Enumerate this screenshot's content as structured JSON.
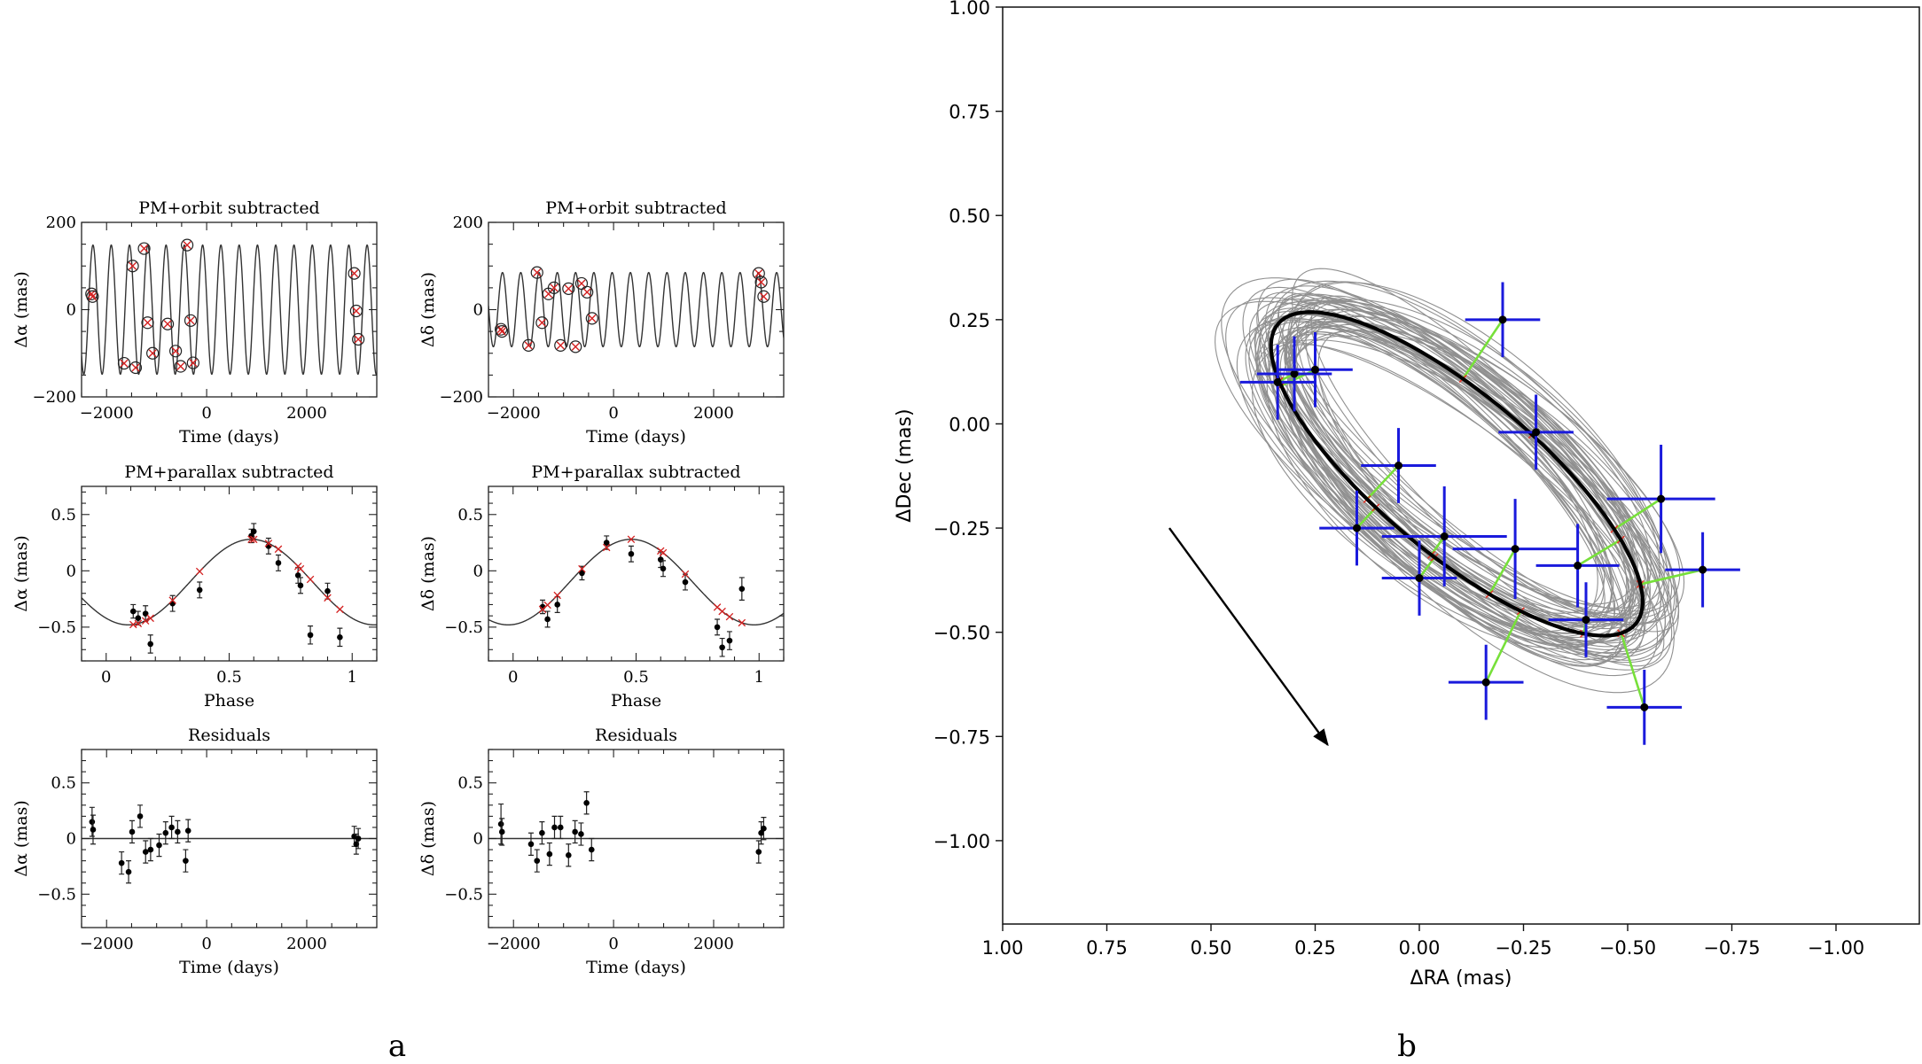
{
  "figure_labels": {
    "a": "a",
    "b": "b"
  },
  "chart_data": [
    {
      "id": "a1",
      "type": "line",
      "title": "PM+orbit subtracted",
      "xlabel": "Time (days)",
      "ylabel": "Δα (mas)",
      "xlim": [
        -2500,
        3400
      ],
      "ylim": [
        -200,
        200
      ],
      "xticks": [
        -2000,
        0,
        2000
      ],
      "yticks": [
        -200,
        0,
        200
      ],
      "model": {
        "kind": "sine",
        "amplitude": 148,
        "period": 365.25,
        "phase_day": -2272
      },
      "points": [
        [
          -2300,
          36
        ],
        [
          -2280,
          30
        ],
        [
          -1480,
          100
        ],
        [
          -1250,
          140
        ],
        [
          -1180,
          -30
        ],
        [
          -1080,
          -100
        ],
        [
          -1650,
          -123
        ],
        [
          -1420,
          -133
        ],
        [
          -780,
          -33
        ],
        [
          -620,
          -95
        ],
        [
          -520,
          -130
        ],
        [
          -390,
          148
        ],
        [
          -320,
          -25
        ],
        [
          -270,
          -122
        ],
        [
          2950,
          83
        ],
        [
          2990,
          -3
        ],
        [
          3030,
          -68
        ]
      ]
    },
    {
      "id": "a2",
      "type": "line",
      "title": "PM+orbit subtracted",
      "xlabel": "Time (days)",
      "ylabel": "Δδ (mas)",
      "xlim": [
        -2500,
        3400
      ],
      "ylim": [
        -200,
        200
      ],
      "xticks": [
        -2000,
        0,
        2000
      ],
      "yticks": [
        -200,
        0,
        200
      ],
      "model": {
        "kind": "sine",
        "amplitude": 85,
        "period": 365.25,
        "phase_day": -2220
      },
      "points": [
        [
          -2250,
          -45
        ],
        [
          -2230,
          -50
        ],
        [
          -1700,
          -82
        ],
        [
          -1530,
          85
        ],
        [
          -1430,
          -30
        ],
        [
          -1300,
          36
        ],
        [
          -1190,
          50
        ],
        [
          -1060,
          -82
        ],
        [
          -900,
          48
        ],
        [
          -760,
          -85
        ],
        [
          -640,
          60
        ],
        [
          -530,
          40
        ],
        [
          -430,
          -20
        ],
        [
          2900,
          83
        ],
        [
          2950,
          63
        ],
        [
          3000,
          30
        ]
      ]
    },
    {
      "id": "a3",
      "type": "line",
      "title": "PM+parallax subtracted",
      "xlabel": "Phase",
      "ylabel": "Δα (mas)",
      "xlim": [
        -0.1,
        1.1
      ],
      "ylim": [
        -0.8,
        0.75
      ],
      "xticks": [
        0,
        0.5,
        1
      ],
      "xtick_labels": [
        "0",
        "0.5",
        "1"
      ],
      "yticks": [
        -0.5,
        0,
        0.5
      ],
      "ytick_labels": [
        "−0.5",
        "0",
        "0.5"
      ],
      "model": {
        "kind": "cosine",
        "mean": -0.1,
        "amplitude": 0.38,
        "peak_phase": 0.59
      },
      "points": [
        [
          0.11,
          -0.36,
          0.06
        ],
        [
          0.13,
          -0.42,
          0.06
        ],
        [
          0.16,
          -0.38,
          0.07
        ],
        [
          0.18,
          -0.65,
          0.08
        ],
        [
          0.27,
          -0.29,
          0.07
        ],
        [
          0.38,
          -0.17,
          0.07
        ],
        [
          0.59,
          0.31,
          0.06
        ],
        [
          0.6,
          0.35,
          0.07
        ],
        [
          0.66,
          0.22,
          0.07
        ],
        [
          0.7,
          0.07,
          0.07
        ],
        [
          0.78,
          -0.04,
          0.07
        ],
        [
          0.79,
          -0.13,
          0.07
        ],
        [
          0.83,
          -0.57,
          0.08
        ],
        [
          0.9,
          -0.18,
          0.07
        ],
        [
          0.95,
          -0.59,
          0.08
        ]
      ]
    },
    {
      "id": "a4",
      "type": "line",
      "title": "PM+parallax subtracted",
      "xlabel": "Phase",
      "ylabel": "Δδ (mas)",
      "xlim": [
        -0.1,
        1.1
      ],
      "ylim": [
        -0.8,
        0.75
      ],
      "xticks": [
        0,
        0.5,
        1
      ],
      "xtick_labels": [
        "0",
        "0.5",
        "1"
      ],
      "yticks": [
        -0.5,
        0,
        0.5
      ],
      "ytick_labels": [
        "−0.5",
        "0",
        "0.5"
      ],
      "model": {
        "kind": "cosine",
        "mean": -0.1,
        "amplitude": 0.38,
        "peak_phase": 0.48
      },
      "points": [
        [
          0.12,
          -0.32,
          0.06
        ],
        [
          0.14,
          -0.43,
          0.07
        ],
        [
          0.18,
          -0.3,
          0.07
        ],
        [
          0.28,
          -0.02,
          0.06
        ],
        [
          0.38,
          0.25,
          0.06
        ],
        [
          0.48,
          0.15,
          0.07
        ],
        [
          0.6,
          0.1,
          0.07
        ],
        [
          0.61,
          0.02,
          0.07
        ],
        [
          0.7,
          -0.1,
          0.07
        ],
        [
          0.83,
          -0.5,
          0.07
        ],
        [
          0.85,
          -0.68,
          0.08
        ],
        [
          0.88,
          -0.62,
          0.08
        ],
        [
          0.93,
          -0.16,
          0.1
        ]
      ]
    },
    {
      "id": "a5",
      "type": "scatter",
      "title": "Residuals",
      "xlabel": "Time (days)",
      "ylabel": "Δα (mas)",
      "xlim": [
        -2500,
        3400
      ],
      "ylim": [
        -0.8,
        0.8
      ],
      "xticks": [
        -2000,
        0,
        2000
      ],
      "yticks": [
        -0.5,
        0,
        0.5
      ],
      "ytick_labels": [
        "−0.5",
        "0",
        "0.5"
      ],
      "points": [
        [
          -2290,
          0.15,
          0.13
        ],
        [
          -2270,
          0.08,
          0.13
        ],
        [
          -1700,
          -0.22,
          0.1
        ],
        [
          -1560,
          -0.3,
          0.1
        ],
        [
          -1490,
          0.06,
          0.1
        ],
        [
          -1330,
          0.2,
          0.1
        ],
        [
          -1220,
          -0.12,
          0.1
        ],
        [
          -1120,
          -0.1,
          0.1
        ],
        [
          -950,
          -0.06,
          0.1
        ],
        [
          -820,
          0.05,
          0.1
        ],
        [
          -700,
          0.1,
          0.1
        ],
        [
          -580,
          0.06,
          0.1
        ],
        [
          -420,
          -0.2,
          0.1
        ],
        [
          -370,
          0.07,
          0.1
        ],
        [
          2950,
          0.02,
          0.09
        ],
        [
          2990,
          -0.05,
          0.09
        ],
        [
          3030,
          0.0,
          0.09
        ]
      ]
    },
    {
      "id": "a6",
      "type": "scatter",
      "title": "Residuals",
      "xlabel": "Time (days)",
      "ylabel": "Δδ (mas)",
      "xlim": [
        -2500,
        3400
      ],
      "ylim": [
        -0.8,
        0.8
      ],
      "xticks": [
        -2000,
        0,
        2000
      ],
      "yticks": [
        -0.5,
        0,
        0.5
      ],
      "ytick_labels": [
        "−0.5",
        "0",
        "0.5"
      ],
      "points": [
        [
          -2250,
          0.13,
          0.18
        ],
        [
          -2230,
          0.06,
          0.12
        ],
        [
          -1650,
          -0.05,
          0.1
        ],
        [
          -1530,
          -0.2,
          0.1
        ],
        [
          -1430,
          0.05,
          0.1
        ],
        [
          -1280,
          -0.14,
          0.1
        ],
        [
          -1180,
          0.1,
          0.1
        ],
        [
          -1060,
          0.1,
          0.1
        ],
        [
          -900,
          -0.15,
          0.1
        ],
        [
          -770,
          0.06,
          0.1
        ],
        [
          -650,
          0.04,
          0.1
        ],
        [
          -540,
          0.32,
          0.1
        ],
        [
          -440,
          -0.1,
          0.1
        ],
        [
          2900,
          -0.12,
          0.1
        ],
        [
          2950,
          0.05,
          0.1
        ],
        [
          3000,
          0.09,
          0.1
        ]
      ]
    },
    {
      "id": "b",
      "type": "scatter",
      "xlabel": "ΔRA (mas)",
      "ylabel": "ΔDec (mas)",
      "xlim": [
        1.0,
        -1.2
      ],
      "ylim": [
        -1.2,
        1.0
      ],
      "xticks": [
        1.0,
        0.75,
        0.5,
        0.25,
        0.0,
        -0.25,
        -0.5,
        -0.75,
        -1.0
      ],
      "xtick_labels": [
        "1.00",
        "0.75",
        "0.50",
        "0.25",
        "0.00",
        "−0.25",
        "−0.50",
        "−0.75",
        "−1.00"
      ],
      "yticks": [
        1.0,
        0.75,
        0.5,
        0.25,
        0.0,
        -0.25,
        -0.5,
        -0.75,
        -1.0
      ],
      "ytick_labels": [
        "1.00",
        "0.75",
        "0.50",
        "0.25",
        "0.00",
        "−0.25",
        "−0.50",
        "−0.75",
        "−1.00"
      ],
      "best_orbit": {
        "center_ra": -0.09,
        "center_dec": -0.12,
        "semi_major": 0.56,
        "semi_minor": 0.19,
        "tilt_deg": -40
      },
      "orbit_samples": {
        "count": 60,
        "color": "#909090"
      },
      "observations": [
        [
          -0.2,
          0.25,
          0.09,
          0.09
        ],
        [
          0.34,
          0.1,
          0.09,
          0.09
        ],
        [
          0.3,
          0.12,
          0.09,
          0.09
        ],
        [
          0.25,
          0.13,
          0.09,
          0.09
        ],
        [
          -0.28,
          -0.02,
          0.09,
          0.09
        ],
        [
          0.05,
          -0.1,
          0.09,
          0.09
        ],
        [
          0.15,
          -0.25,
          0.09,
          0.09
        ],
        [
          -0.06,
          -0.27,
          0.15,
          0.12
        ],
        [
          -0.23,
          -0.3,
          0.15,
          0.12
        ],
        [
          -0.38,
          -0.34,
          0.1,
          0.1
        ],
        [
          -0.58,
          -0.18,
          0.13,
          0.13
        ],
        [
          -0.68,
          -0.35,
          0.09,
          0.09
        ],
        [
          0.0,
          -0.37,
          0.09,
          0.09
        ],
        [
          -0.4,
          -0.47,
          0.09,
          0.09
        ],
        [
          -0.16,
          -0.62,
          0.09,
          0.09
        ],
        [
          -0.54,
          -0.68,
          0.09,
          0.09
        ]
      ],
      "arrow": {
        "from": [
          0.6,
          -0.25
        ],
        "to": [
          0.22,
          -0.77
        ]
      },
      "colors": {
        "best_orbit": "#000000",
        "errorbars": "#1a1adc",
        "residual_lines": "#77e03a",
        "model_positions": "#e2382b"
      }
    }
  ]
}
